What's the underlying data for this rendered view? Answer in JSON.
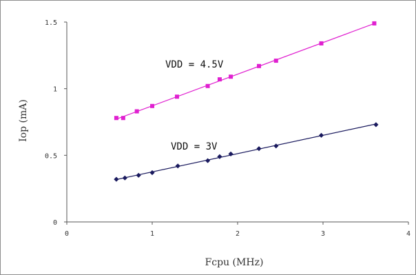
{
  "chart_data": {
    "type": "scatter",
    "title": "",
    "xlabel": "Fcpu (MHz)",
    "ylabel": "Iop (mA)",
    "xlim": [
      0,
      4
    ],
    "ylim": [
      0,
      1.5
    ],
    "x_ticks": [
      "0",
      "1",
      "2",
      "3",
      "4"
    ],
    "y_ticks": [
      "0",
      "0.5",
      "1",
      "1.5"
    ],
    "grid": false,
    "legend": "none",
    "series": [
      {
        "name": "VDD = 4.5V",
        "color": "#e020d0",
        "marker": "square",
        "trendline": true,
        "x": [
          0.58,
          0.66,
          0.82,
          1.0,
          1.29,
          1.65,
          1.79,
          1.92,
          2.25,
          2.45,
          2.98,
          3.6
        ],
        "y": [
          0.78,
          0.78,
          0.83,
          0.87,
          0.94,
          1.02,
          1.07,
          1.09,
          1.17,
          1.21,
          1.34,
          1.49
        ]
      },
      {
        "name": "VDD = 3V",
        "color": "#1a1a5e",
        "marker": "diamond",
        "trendline": true,
        "x": [
          0.58,
          0.68,
          0.84,
          1.0,
          1.3,
          1.65,
          1.79,
          1.92,
          2.25,
          2.45,
          2.98,
          3.62
        ],
        "y": [
          0.32,
          0.33,
          0.35,
          0.37,
          0.42,
          0.46,
          0.49,
          0.51,
          0.55,
          0.57,
          0.65,
          0.73
        ]
      }
    ]
  }
}
